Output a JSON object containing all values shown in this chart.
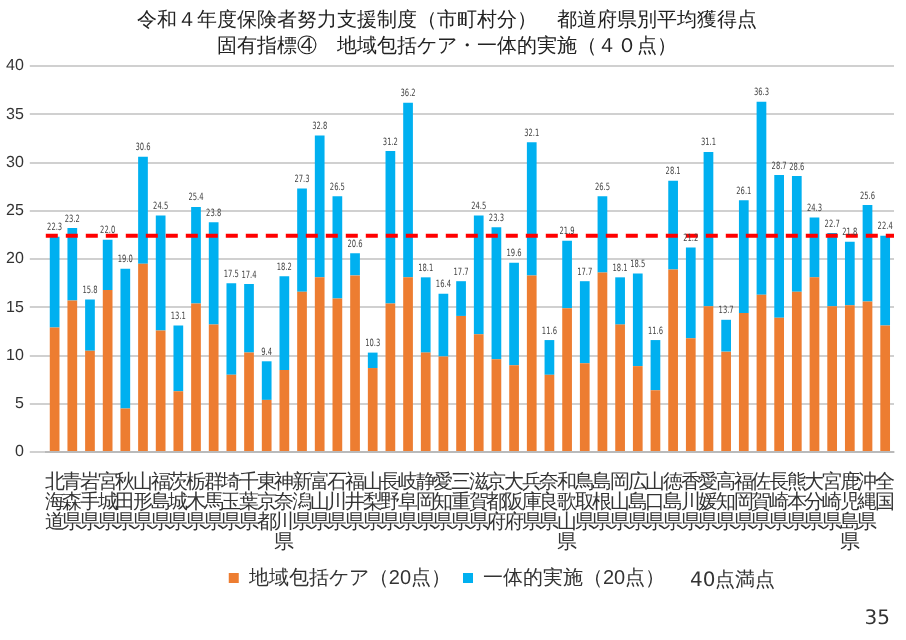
{
  "chart_data": {
    "type": "bar",
    "stacked": true,
    "title": "令和４年度保険者努力支援制度（市町村分）　都道府県別平均獲得点",
    "subtitle": "固有指標④　地域包括ケア・一体的実施（４０点）",
    "categories": [
      "北海道",
      "青森県",
      "岩手県",
      "宮城県",
      "秋田県",
      "山形県",
      "福島県",
      "茨城県",
      "栃木県",
      "群馬県",
      "埼玉県",
      "千葉県",
      "東京都",
      "神奈川県",
      "新潟県",
      "富山県",
      "石川県",
      "福井県",
      "山梨県",
      "長野県",
      "岐阜県",
      "静岡県",
      "愛知県",
      "三重県",
      "滋賀県",
      "京都府",
      "大阪府",
      "兵庫県",
      "奈良県",
      "和歌山県",
      "鳥取県",
      "島根県",
      "岡山県",
      "広島県",
      "山口県",
      "徳島県",
      "香川県",
      "愛媛県",
      "高知県",
      "福岡県",
      "佐賀県",
      "長崎県",
      "熊本県",
      "大分県",
      "宮崎県",
      "鹿児島県",
      "沖縄県",
      "全国"
    ],
    "series": [
      {
        "name": "地域包括ケア（20点）",
        "color": "#ed7d31",
        "values": [
          12.9,
          15.7,
          10.5,
          16.8,
          4.5,
          19.5,
          12.6,
          6.3,
          15.4,
          13.2,
          8.0,
          10.3,
          5.4,
          8.5,
          16.6,
          18.1,
          15.9,
          18.3,
          8.7,
          15.4,
          18.1,
          10.3,
          9.9,
          14.1,
          12.2,
          9.6,
          9.0,
          18.3,
          8.0,
          14.9,
          9.2,
          18.6,
          13.2,
          8.9,
          6.4,
          18.9,
          11.8,
          15.1,
          10.4,
          14.4,
          16.3,
          13.9,
          16.6,
          18.1,
          15.1,
          15.2,
          15.6,
          13.1
        ]
      },
      {
        "name": "一体的実施（20点）",
        "color": "#00b0f0",
        "values": [
          9.4,
          7.5,
          5.3,
          5.2,
          14.5,
          11.1,
          11.9,
          6.8,
          10.0,
          10.6,
          9.5,
          7.1,
          4.0,
          9.7,
          10.7,
          14.7,
          10.6,
          2.3,
          1.6,
          15.8,
          18.1,
          7.8,
          6.5,
          3.6,
          12.3,
          13.7,
          10.6,
          13.8,
          3.6,
          7.0,
          8.5,
          7.9,
          4.9,
          9.6,
          5.2,
          9.2,
          9.4,
          16.0,
          3.3,
          11.7,
          20.0,
          14.8,
          12.0,
          6.2,
          7.6,
          6.6,
          10.0,
          9.3
        ]
      }
    ],
    "totals": [
      "22.3",
      "23.2",
      "15.8",
      "22.0",
      "19.0",
      "30.6",
      "24.5",
      "13.1",
      "25.4",
      "23.8",
      "17.5",
      "17.4",
      "9.4",
      "18.2",
      "27.3",
      "32.8",
      "26.5",
      "20.6",
      "10.3",
      "31.2",
      "36.2",
      "18.1",
      "16.4",
      "17.7",
      "24.5",
      "23.3",
      "19.6",
      "32.1",
      "11.6",
      "21.9",
      "17.7",
      "26.5",
      "18.1",
      "18.5",
      "11.6",
      "28.1",
      "21.2",
      "31.1",
      "13.7",
      "26.1",
      "36.3",
      "28.7",
      "28.6",
      "24.3",
      "22.7",
      "21.8",
      "25.6",
      "22.4"
    ],
    "ylim": [
      0,
      40
    ],
    "yticks": [
      0,
      5,
      10,
      15,
      20,
      25,
      30,
      35,
      40
    ],
    "grid": "y",
    "legend": "bottom",
    "ref_lines": [
      {
        "axis": "y",
        "value": 22.4,
        "color": "#ff0000",
        "line_style": "dashed"
      }
    ],
    "annotations": [
      "40点満点",
      "35"
    ]
  }
}
